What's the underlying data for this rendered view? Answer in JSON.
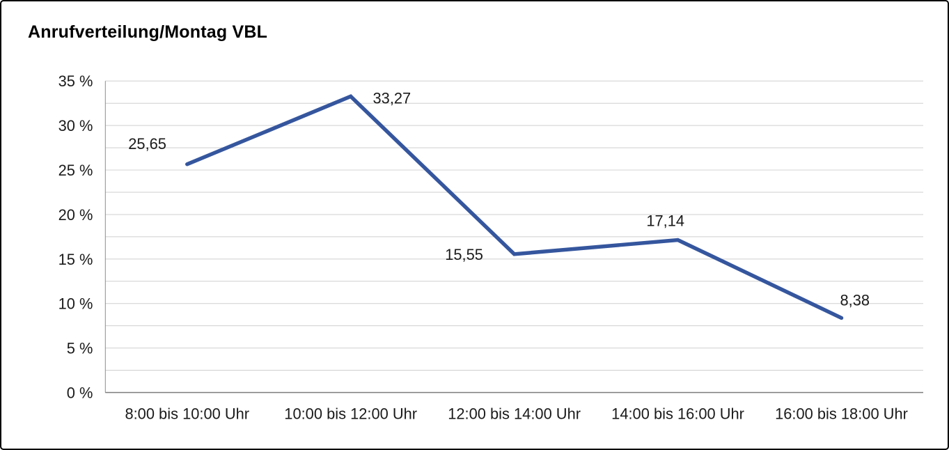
{
  "title": "Anrufverteilung/Montag VBL",
  "chart_data": {
    "type": "line",
    "title": "Anrufverteilung/Montag VBL",
    "categories": [
      "8:00 bis 10:00 Uhr",
      "10:00 bis 12:00 Uhr",
      "12:00 bis 14:00 Uhr",
      "14:00 bis 16:00 Uhr",
      "16:00 bis 18:00 Uhr"
    ],
    "values": [
      25.65,
      33.27,
      15.55,
      17.14,
      8.38
    ],
    "value_labels": [
      "25,65",
      "33,27",
      "15,55",
      "17,14",
      "8,38"
    ],
    "xlabel": "",
    "ylabel": "",
    "ylim": [
      0,
      35
    ],
    "y_tick_step": 5,
    "y_minor_step": 2.5,
    "y_tick_labels": [
      "0 %",
      "5 %",
      "10 %",
      "15 %",
      "20 %",
      "25 %",
      "30 %",
      "35 %"
    ],
    "grid": true,
    "legend": "none",
    "line_color": "#35569E",
    "grid_color": "#cfcfcf",
    "axis_color": "#8c8c8c",
    "baseline_color": "#7a7a7a",
    "text_color": "#1a1a1a"
  }
}
